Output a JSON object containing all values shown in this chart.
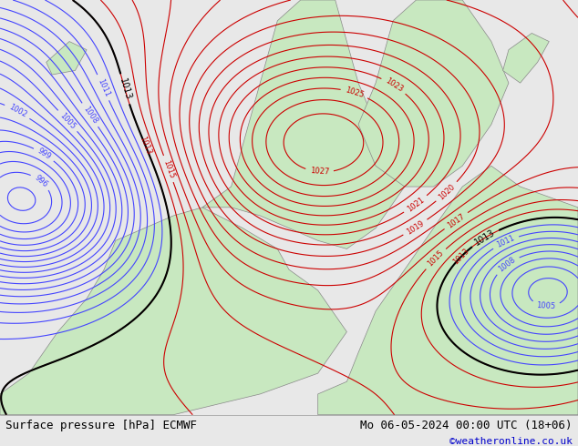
{
  "title_left": "Surface pressure [hPa] ECMWF",
  "title_right": "Mo 06-05-2024 00:00 UTC (18+06)",
  "copyright": "©weatheronline.co.uk",
  "bg_color": "#e8e8e8",
  "land_color": "#c8e8c0",
  "figsize": [
    6.34,
    4.9
  ],
  "dpi": 100,
  "bottom_bar_color": "#d0d0d0",
  "title_fontsize": 9,
  "copyright_color": "#0000cc",
  "copyright_fontsize": 8
}
